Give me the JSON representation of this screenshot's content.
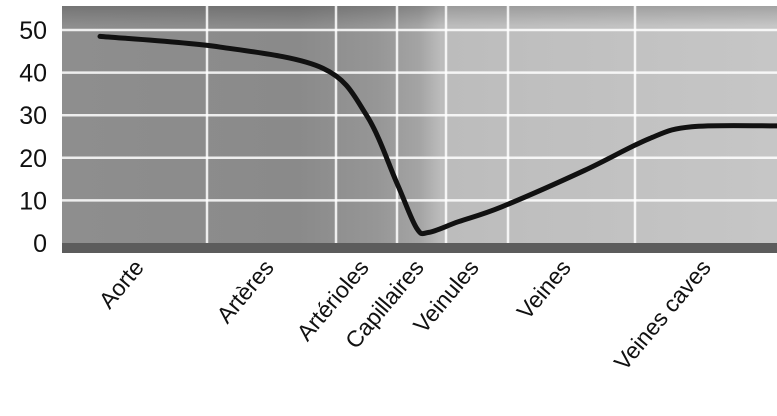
{
  "chart_data": {
    "type": "line",
    "title": "",
    "xlabel": "",
    "ylabel": "",
    "ylim": [
      0,
      50
    ],
    "yticks": [
      0,
      10,
      20,
      30,
      40,
      50
    ],
    "grid": true,
    "legend": "none",
    "categories": [
      "Aorte",
      "Artères",
      "Artérioles",
      "Capillaires",
      "Veinules",
      "Veines",
      "Veines caves"
    ],
    "series": [
      {
        "values": [
          48,
          41,
          22,
          3,
          7,
          18,
          27
        ],
        "curve": [
          {
            "x": 0.0,
            "y": 48.5
          },
          {
            "x": 1.1,
            "y": 46
          },
          {
            "x": 1.9,
            "y": 41
          },
          {
            "x": 2.5,
            "y": 30
          },
          {
            "x": 3.0,
            "y": 14
          },
          {
            "x": 3.4,
            "y": 3.5
          },
          {
            "x": 3.65,
            "y": 2.5
          },
          {
            "x": 4.2,
            "y": 5
          },
          {
            "x": 4.9,
            "y": 8.5
          },
          {
            "x": 5.6,
            "y": 17
          },
          {
            "x": 6.2,
            "y": 24.5
          },
          {
            "x": 6.8,
            "y": 27.3
          },
          {
            "x": 8.0,
            "y": 27.5
          }
        ]
      }
    ],
    "colors": {
      "line": "#111111",
      "grid": "#ffffff",
      "panel_dark": "#8f8f8f",
      "panel_mid": "#a3a3a3",
      "panel_light": "#bdbdbd"
    }
  }
}
